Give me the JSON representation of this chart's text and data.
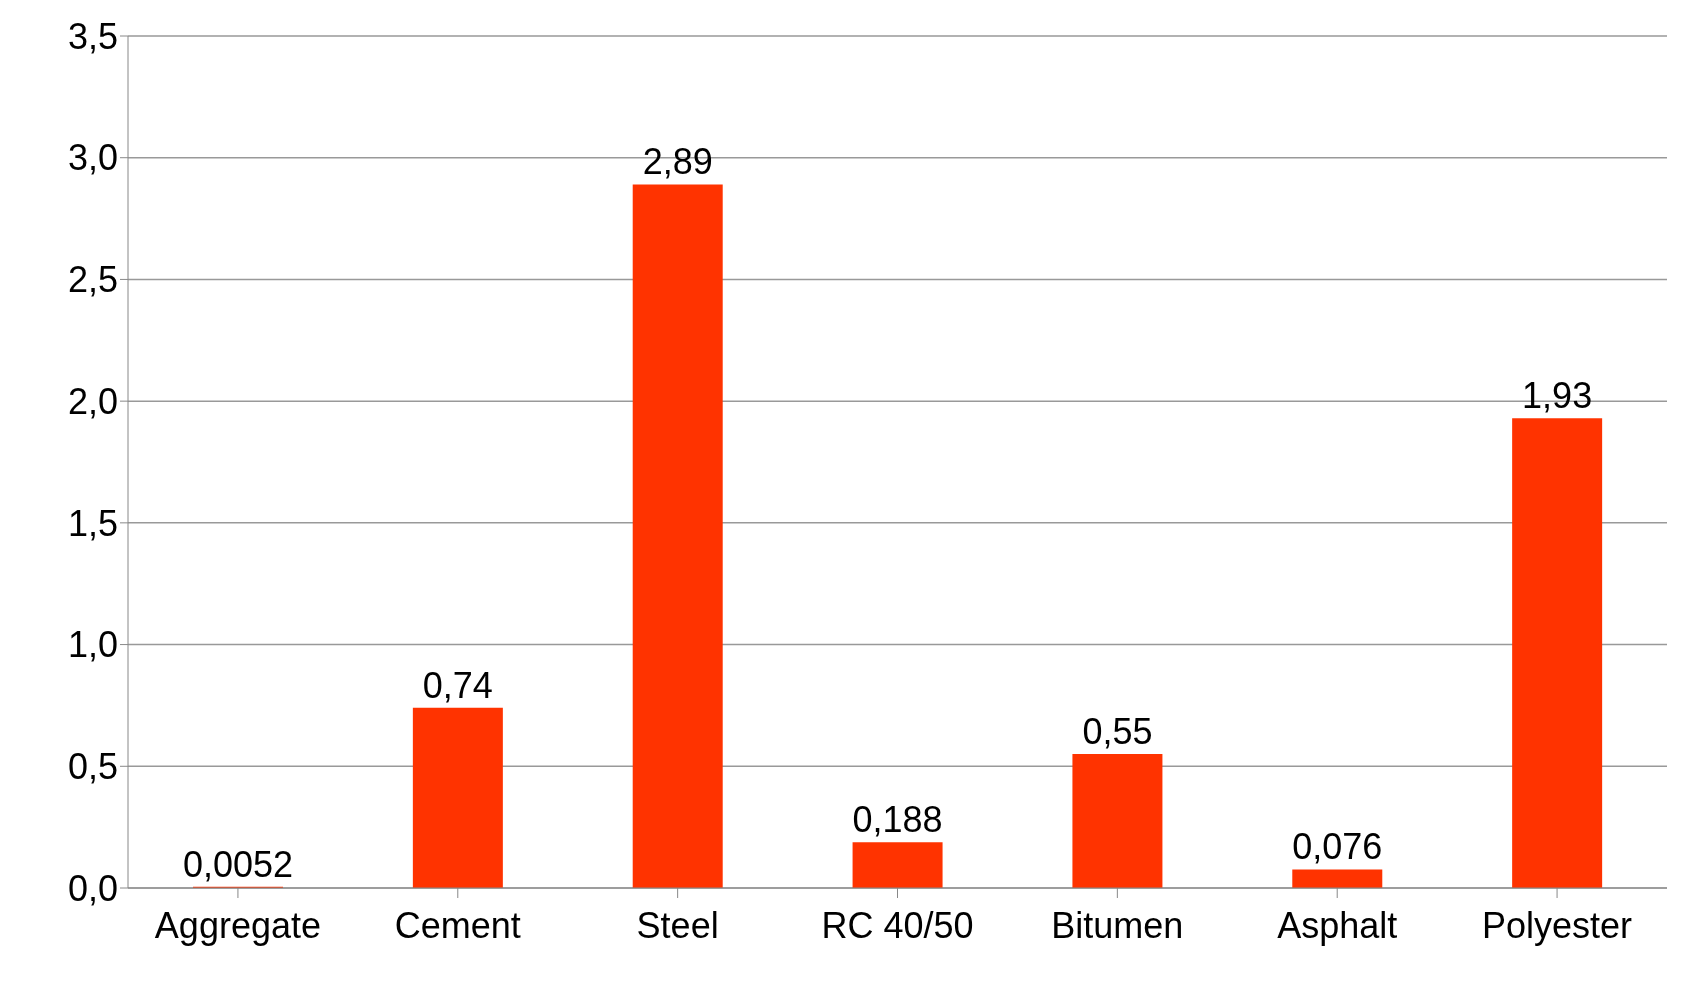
{
  "chart_data": {
    "type": "bar",
    "categories": [
      "Aggregate",
      "Cement",
      "Steel",
      "RC 40/50",
      "Bitumen",
      "Asphalt",
      "Polyester"
    ],
    "values": [
      0.0052,
      0.74,
      2.89,
      0.188,
      0.55,
      0.076,
      1.93
    ],
    "value_labels": [
      "0,0052",
      "0,74",
      "2,89",
      "0,188",
      "0,55",
      "0,076",
      "1,93"
    ],
    "color": "#ff3300",
    "ylim": [
      0,
      3.5
    ],
    "yticks": [
      {
        "value": 0,
        "label": "0,0"
      },
      {
        "value": 0.5,
        "label": "0,5"
      },
      {
        "value": 1,
        "label": "1,0"
      },
      {
        "value": 1.5,
        "label": "1,5"
      },
      {
        "value": 2,
        "label": "2,0"
      },
      {
        "value": 2.5,
        "label": "2,5"
      },
      {
        "value": 3,
        "label": "3,0"
      },
      {
        "value": 3.5,
        "label": "3,5"
      }
    ],
    "grid": "y"
  }
}
